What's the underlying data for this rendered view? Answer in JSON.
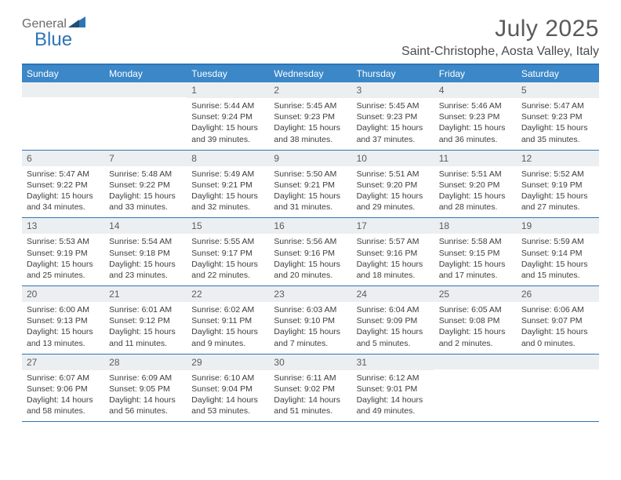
{
  "logo": {
    "part1": "General",
    "part2": "Blue"
  },
  "title": "July 2025",
  "subtitle": "Saint-Christophe, Aosta Valley, Italy",
  "colors": {
    "brand_blue": "#2e75b6",
    "header_blue": "#3b87c8",
    "daynum_bg": "#eceff1",
    "text_grey": "#5a5a5a",
    "white": "#ffffff"
  },
  "typography": {
    "title_fontsize": 30,
    "subtitle_fontsize": 16,
    "dow_fontsize": 12,
    "daynum_fontsize": 12,
    "body_fontsize": 10.5
  },
  "layout": {
    "columns": 7,
    "rows": 5,
    "first_day_col": 2
  },
  "dow": [
    "Sunday",
    "Monday",
    "Tuesday",
    "Wednesday",
    "Thursday",
    "Friday",
    "Saturday"
  ],
  "days": [
    {
      "n": "1",
      "sunrise": "Sunrise: 5:44 AM",
      "sunset": "Sunset: 9:24 PM",
      "day1": "Daylight: 15 hours",
      "day2": "and 39 minutes."
    },
    {
      "n": "2",
      "sunrise": "Sunrise: 5:45 AM",
      "sunset": "Sunset: 9:23 PM",
      "day1": "Daylight: 15 hours",
      "day2": "and 38 minutes."
    },
    {
      "n": "3",
      "sunrise": "Sunrise: 5:45 AM",
      "sunset": "Sunset: 9:23 PM",
      "day1": "Daylight: 15 hours",
      "day2": "and 37 minutes."
    },
    {
      "n": "4",
      "sunrise": "Sunrise: 5:46 AM",
      "sunset": "Sunset: 9:23 PM",
      "day1": "Daylight: 15 hours",
      "day2": "and 36 minutes."
    },
    {
      "n": "5",
      "sunrise": "Sunrise: 5:47 AM",
      "sunset": "Sunset: 9:23 PM",
      "day1": "Daylight: 15 hours",
      "day2": "and 35 minutes."
    },
    {
      "n": "6",
      "sunrise": "Sunrise: 5:47 AM",
      "sunset": "Sunset: 9:22 PM",
      "day1": "Daylight: 15 hours",
      "day2": "and 34 minutes."
    },
    {
      "n": "7",
      "sunrise": "Sunrise: 5:48 AM",
      "sunset": "Sunset: 9:22 PM",
      "day1": "Daylight: 15 hours",
      "day2": "and 33 minutes."
    },
    {
      "n": "8",
      "sunrise": "Sunrise: 5:49 AM",
      "sunset": "Sunset: 9:21 PM",
      "day1": "Daylight: 15 hours",
      "day2": "and 32 minutes."
    },
    {
      "n": "9",
      "sunrise": "Sunrise: 5:50 AM",
      "sunset": "Sunset: 9:21 PM",
      "day1": "Daylight: 15 hours",
      "day2": "and 31 minutes."
    },
    {
      "n": "10",
      "sunrise": "Sunrise: 5:51 AM",
      "sunset": "Sunset: 9:20 PM",
      "day1": "Daylight: 15 hours",
      "day2": "and 29 minutes."
    },
    {
      "n": "11",
      "sunrise": "Sunrise: 5:51 AM",
      "sunset": "Sunset: 9:20 PM",
      "day1": "Daylight: 15 hours",
      "day2": "and 28 minutes."
    },
    {
      "n": "12",
      "sunrise": "Sunrise: 5:52 AM",
      "sunset": "Sunset: 9:19 PM",
      "day1": "Daylight: 15 hours",
      "day2": "and 27 minutes."
    },
    {
      "n": "13",
      "sunrise": "Sunrise: 5:53 AM",
      "sunset": "Sunset: 9:19 PM",
      "day1": "Daylight: 15 hours",
      "day2": "and 25 minutes."
    },
    {
      "n": "14",
      "sunrise": "Sunrise: 5:54 AM",
      "sunset": "Sunset: 9:18 PM",
      "day1": "Daylight: 15 hours",
      "day2": "and 23 minutes."
    },
    {
      "n": "15",
      "sunrise": "Sunrise: 5:55 AM",
      "sunset": "Sunset: 9:17 PM",
      "day1": "Daylight: 15 hours",
      "day2": "and 22 minutes."
    },
    {
      "n": "16",
      "sunrise": "Sunrise: 5:56 AM",
      "sunset": "Sunset: 9:16 PM",
      "day1": "Daylight: 15 hours",
      "day2": "and 20 minutes."
    },
    {
      "n": "17",
      "sunrise": "Sunrise: 5:57 AM",
      "sunset": "Sunset: 9:16 PM",
      "day1": "Daylight: 15 hours",
      "day2": "and 18 minutes."
    },
    {
      "n": "18",
      "sunrise": "Sunrise: 5:58 AM",
      "sunset": "Sunset: 9:15 PM",
      "day1": "Daylight: 15 hours",
      "day2": "and 17 minutes."
    },
    {
      "n": "19",
      "sunrise": "Sunrise: 5:59 AM",
      "sunset": "Sunset: 9:14 PM",
      "day1": "Daylight: 15 hours",
      "day2": "and 15 minutes."
    },
    {
      "n": "20",
      "sunrise": "Sunrise: 6:00 AM",
      "sunset": "Sunset: 9:13 PM",
      "day1": "Daylight: 15 hours",
      "day2": "and 13 minutes."
    },
    {
      "n": "21",
      "sunrise": "Sunrise: 6:01 AM",
      "sunset": "Sunset: 9:12 PM",
      "day1": "Daylight: 15 hours",
      "day2": "and 11 minutes."
    },
    {
      "n": "22",
      "sunrise": "Sunrise: 6:02 AM",
      "sunset": "Sunset: 9:11 PM",
      "day1": "Daylight: 15 hours",
      "day2": "and 9 minutes."
    },
    {
      "n": "23",
      "sunrise": "Sunrise: 6:03 AM",
      "sunset": "Sunset: 9:10 PM",
      "day1": "Daylight: 15 hours",
      "day2": "and 7 minutes."
    },
    {
      "n": "24",
      "sunrise": "Sunrise: 6:04 AM",
      "sunset": "Sunset: 9:09 PM",
      "day1": "Daylight: 15 hours",
      "day2": "and 5 minutes."
    },
    {
      "n": "25",
      "sunrise": "Sunrise: 6:05 AM",
      "sunset": "Sunset: 9:08 PM",
      "day1": "Daylight: 15 hours",
      "day2": "and 2 minutes."
    },
    {
      "n": "26",
      "sunrise": "Sunrise: 6:06 AM",
      "sunset": "Sunset: 9:07 PM",
      "day1": "Daylight: 15 hours",
      "day2": "and 0 minutes."
    },
    {
      "n": "27",
      "sunrise": "Sunrise: 6:07 AM",
      "sunset": "Sunset: 9:06 PM",
      "day1": "Daylight: 14 hours",
      "day2": "and 58 minutes."
    },
    {
      "n": "28",
      "sunrise": "Sunrise: 6:09 AM",
      "sunset": "Sunset: 9:05 PM",
      "day1": "Daylight: 14 hours",
      "day2": "and 56 minutes."
    },
    {
      "n": "29",
      "sunrise": "Sunrise: 6:10 AM",
      "sunset": "Sunset: 9:04 PM",
      "day1": "Daylight: 14 hours",
      "day2": "and 53 minutes."
    },
    {
      "n": "30",
      "sunrise": "Sunrise: 6:11 AM",
      "sunset": "Sunset: 9:02 PM",
      "day1": "Daylight: 14 hours",
      "day2": "and 51 minutes."
    },
    {
      "n": "31",
      "sunrise": "Sunrise: 6:12 AM",
      "sunset": "Sunset: 9:01 PM",
      "day1": "Daylight: 14 hours",
      "day2": "and 49 minutes."
    }
  ]
}
